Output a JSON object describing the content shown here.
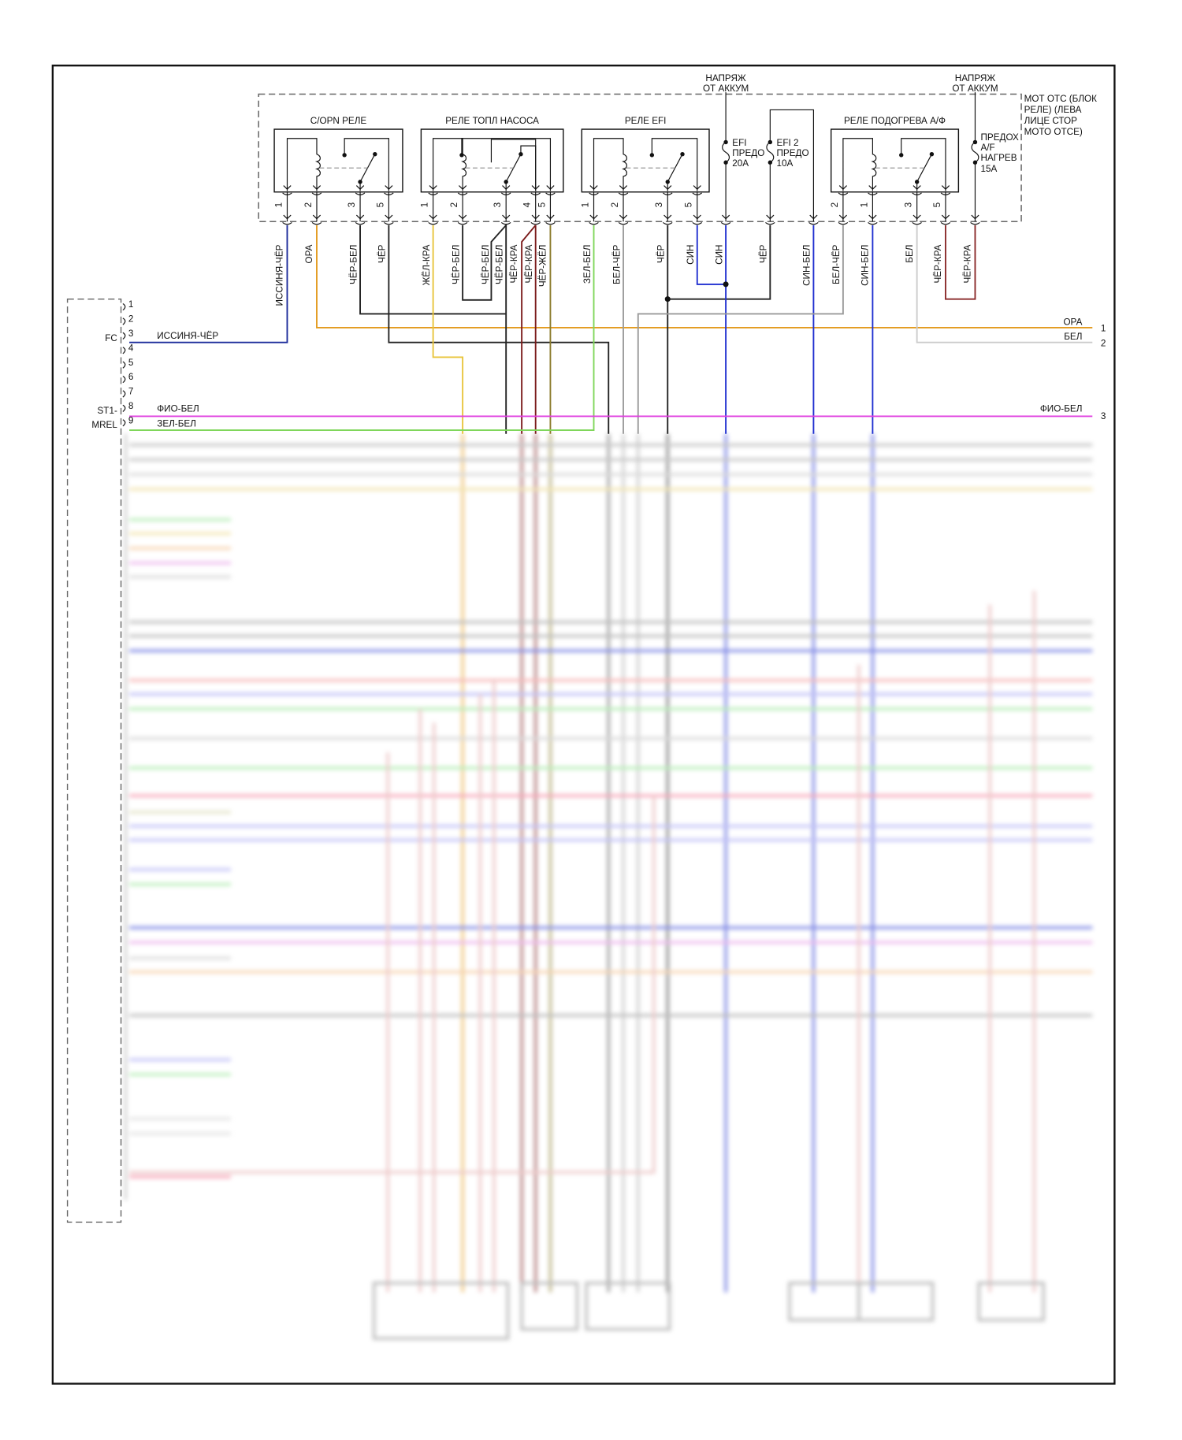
{
  "colors": {
    "frame": "#111111",
    "dashed": "#666666",
    "blue_dark": "#1b2a9a",
    "blue": "#1f2fd0",
    "orange": "#e39a1d",
    "black": "#222222",
    "yellow": "#e8c43a",
    "red_black": "#7a1a1a",
    "green": "#7fd65a",
    "gray": "#9a9a9a",
    "light_gray": "#cccccc",
    "violet": "#e040e0",
    "black_yellow": "#8a7a2a"
  },
  "relay_block": {
    "label_lines": [
      "МОТ ОТС (БЛОК",
      "РЕЛЕ) (ЛЕВА",
      "ЛИЦЕ СТОР",
      "МОТО ОТСЕ)"
    ],
    "battery_feed_1": [
      "НАПРЯЖ",
      "ОТ АККУМ"
    ],
    "battery_feed_2": [
      "НАПРЯЖ",
      "ОТ АККУМ"
    ],
    "relays": [
      {
        "name": "C/OPN РЕЛЕ",
        "pins": [
          "1",
          "2",
          "3",
          "5"
        ]
      },
      {
        "name": "РЕЛЕ ТОПЛ НАСОСА",
        "pins": [
          "1",
          "2",
          "3",
          "4",
          "5"
        ]
      },
      {
        "name": "РЕЛЕ EFI",
        "pins": [
          "1",
          "2",
          "3",
          "5"
        ]
      },
      {
        "name": "РЕЛЕ ПОДОГРЕВА А/Ф",
        "pins": [
          "2",
          "1",
          "3",
          "5"
        ]
      }
    ],
    "fuses": [
      {
        "lines": [
          "EFI",
          "ПРЕДО",
          "20A"
        ]
      },
      {
        "lines": [
          "EFI 2",
          "ПРЕДО",
          "10A"
        ]
      },
      {
        "lines": [
          "ПРЕДОХ",
          "A/F",
          "НАГРЕВ",
          "15A"
        ]
      }
    ]
  },
  "wire_labels": [
    "ИССИНЯ-ЧЁР",
    "ОРА",
    "ЧЁР-БЕЛ",
    "ЧЁР",
    "ЖЁЛ-КРА",
    "ЧЁР-БЕЛ",
    "ЧЁР-БЕЛ",
    "ЧЁР-БЕЛ",
    "ЧЁР-КРА",
    "ЧЁР-КРА",
    "ЧЁР-ЖЁЛ",
    "ЗЕЛ-БЕЛ",
    "БЕЛ-ЧЁР",
    "ЧЁР",
    "СИН",
    "СИН",
    "ЧЁР",
    "СИН-БЕЛ",
    "БЕЛ-ЧЁР",
    "СИН-БЕЛ",
    "БЕЛ",
    "ЧЁР-КРА",
    "ЧЁР-КРА"
  ],
  "ecm_connector": {
    "pins": [
      "1",
      "2",
      "3",
      "4",
      "5",
      "6",
      "7",
      "8",
      "9"
    ],
    "pin_names": {
      "3": "FC",
      "8": "ST1-",
      "9": "MREL"
    },
    "wires": [
      {
        "pin": "3",
        "label": "ИССИНЯ-ЧЁР"
      },
      {
        "pin": "8",
        "label": "ФИО-БЕЛ"
      },
      {
        "pin": "9",
        "label": "ЗЕЛ-БЕЛ"
      }
    ]
  },
  "right_connector": {
    "wires": [
      {
        "pin": "1",
        "label": "ОРА"
      },
      {
        "pin": "2",
        "label": "БЕЛ"
      },
      {
        "pin": "3",
        "label": "ФИО-БЕЛ"
      }
    ]
  }
}
